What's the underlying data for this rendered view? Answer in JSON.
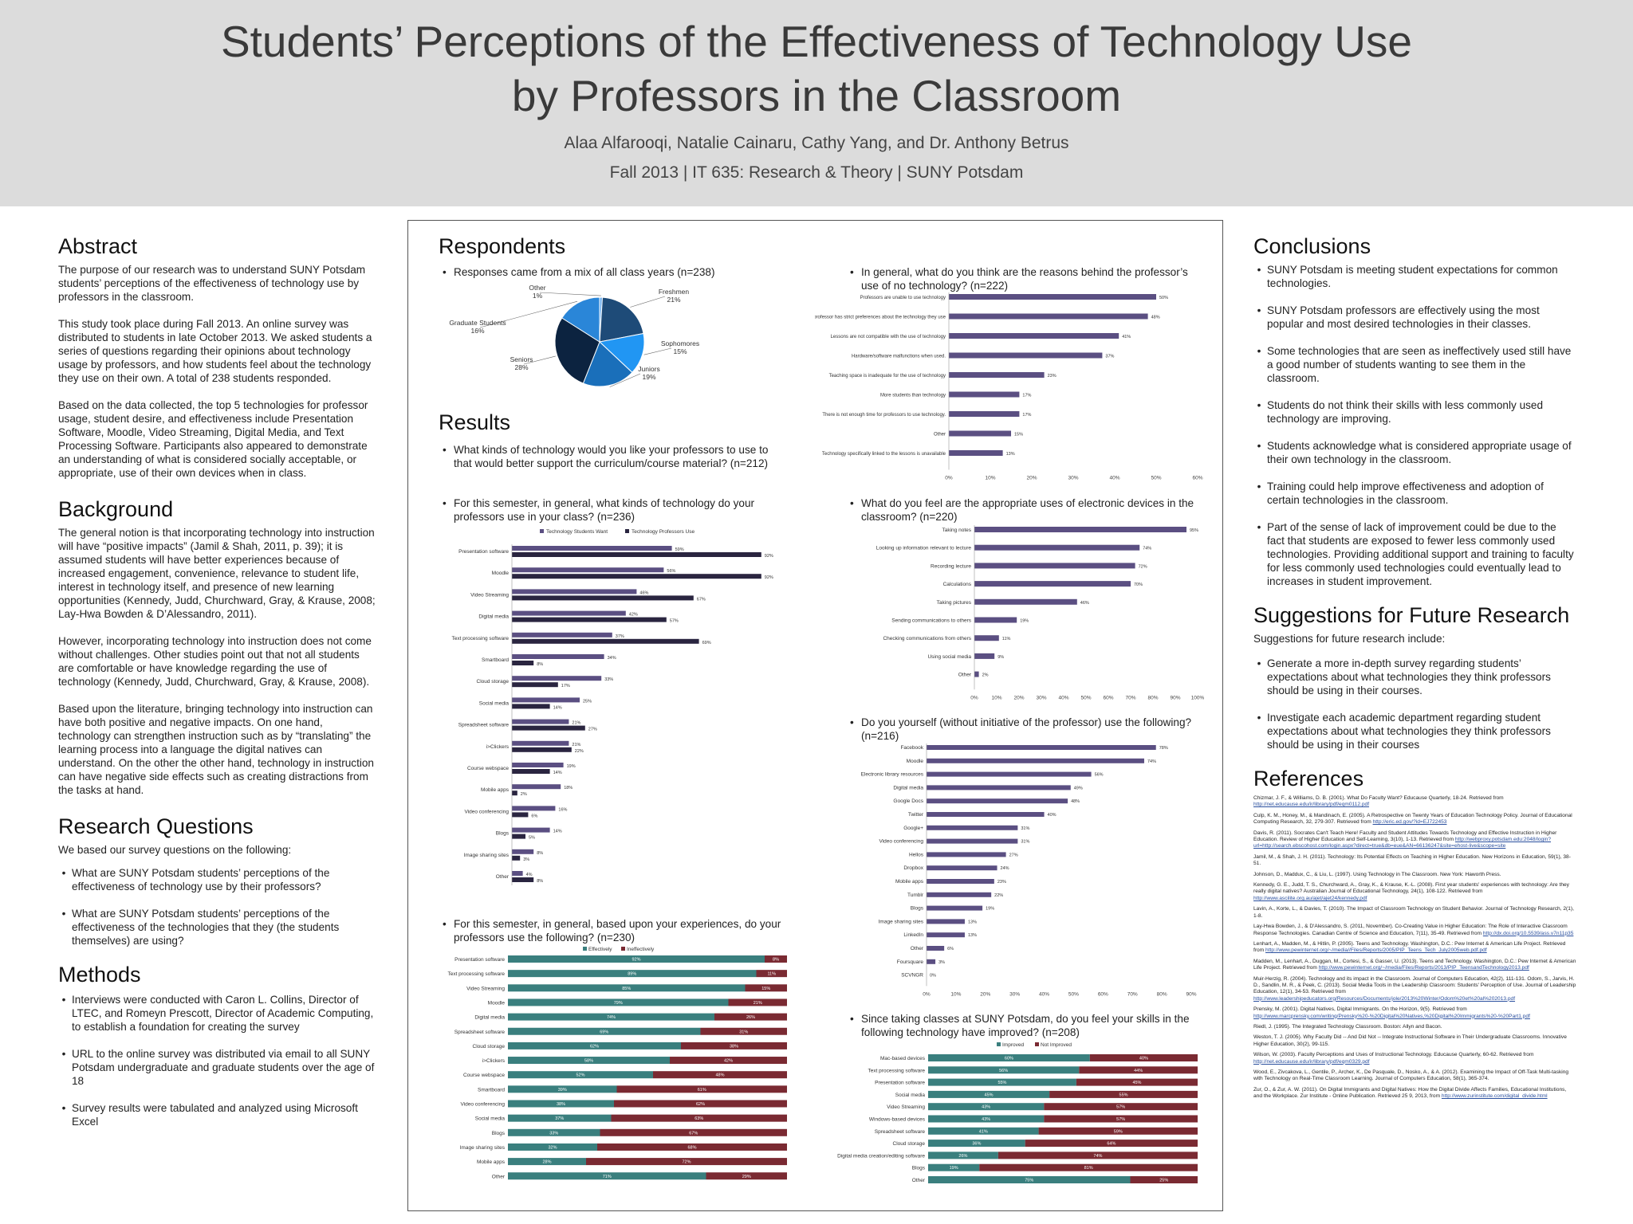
{
  "header": {
    "title_line1": "Students’ Perceptions of the Effectiveness of Technology Use",
    "title_line2": "by Professors in the Classroom",
    "authors": "Alaa Alfarooqi, Natalie Cainaru, Cathy Yang, and Dr. Anthony Betrus",
    "course": "Fall 2013 | IT 635: Research & Theory | SUNY Potsdam"
  },
  "abstract": {
    "heading": "Abstract",
    "p1": "The purpose of our research was to understand SUNY Potsdam students’ perceptions of the effectiveness of technology use by professors in the classroom.",
    "p2": "This study took place during Fall 2013. An online survey was distributed to students in late October 2013. We asked students a series of questions regarding their opinions about technology usage by professors, and how students feel about the technology they use on their own. A total of 238 students responded.",
    "p3": "Based on the data collected, the top 5 technologies for professor usage, student desire, and effectiveness include Presentation Software, Moodle, Video Streaming, Digital Media, and Text Processing Software. Participants also appeared to demonstrate an understanding of what is considered socially acceptable, or appropriate, use of their own devices when in class."
  },
  "background": {
    "heading": "Background",
    "p1": "The general notion is that incorporating technology into instruction will have “positive impacts” (Jamil & Shah, 2011, p. 39); it is assumed students will have better experiences because of increased engagement, convenience, relevance to student life, interest in technology itself, and presence of new learning opportunities (Kennedy, Judd, Churchward, Gray, & Krause, 2008; Lay-Hwa Bowden & D’Alessandro, 2011).",
    "p2": "However, incorporating technology into instruction does not come without challenges. Other studies point out that not all students are comfortable or have knowledge regarding the use of technology (Kennedy, Judd, Churchward, Gray, & Krause, 2008).",
    "p3": "Based upon the literature, bringing technology into instruction can have both positive and negative impacts. On one hand, technology can strengthen instruction such as by “translating” the learning process into a language the digital natives can understand. On the other the other hand, technology in instruction can have negative side effects such as creating distractions from the tasks at hand."
  },
  "research_questions": {
    "heading": "Research Questions",
    "intro": "We based our survey questions on the following:",
    "items": [
      "What are SUNY Potsdam students’ perceptions of the effectiveness of technology use by their professors?",
      "What are SUNY Potsdam students’ perceptions of the effectiveness of the technologies that they (the students themselves) are using?"
    ]
  },
  "methods": {
    "heading": "Methods",
    "items": [
      "Interviews were conducted with Caron L. Collins, Director of LTEC, and Romeyn Prescott, Director of Academic Computing, to establish a foundation for creating the survey",
      "URL to the online survey was distributed via email to all SUNY Potsdam undergraduate and graduate students over the age of 18",
      "Survey results were tabulated and analyzed using Microsoft Excel"
    ]
  },
  "respondents": {
    "heading": "Respondents",
    "bullet": "Responses came from a mix of all class years (n=238)"
  },
  "results": {
    "heading": "Results",
    "q1": "What kinds of technology would you like your professors to use to that would better support the curriculum/course material? (n=212)",
    "q2": "For this semester, in general, what kinds of technology do your professors use in your class? (n=236)",
    "q3": "For this semester, in general, based upon your experiences, do your professors use the following? (n=230)",
    "q4": "In general, what do you think are the reasons behind the professor’s use of no technology? (n=222)",
    "q5": "What do you feel are the appropriate uses of electronic devices in the classroom? (n=220)",
    "q6": "Do you yourself (without initiative of the professor) use the following? (n=216)",
    "q7": "Since taking classes at SUNY Potsdam, do you feel your skills in the following technology have improved? (n=208)"
  },
  "conclusions": {
    "heading": "Conclusions",
    "items": [
      "SUNY Potsdam is meeting student expectations for common technologies.",
      "SUNY Potsdam professors are effectively using the most popular and most desired technologies in their classes.",
      "Some technologies that are seen as ineffectively used still have a good number of students wanting to see them in the classroom.",
      "Students do not think their skills with less commonly used technology are improving.",
      "Students acknowledge what is considered appropriate usage of their own technology in the classroom.",
      "Training could help improve effectiveness and adoption of certain technologies in the classroom.",
      "Part of the sense of lack of improvement could be due to the fact that students are exposed to fewer less commonly used technologies. Providing additional support and training to faculty for less commonly used technologies could eventually lead to increases in student improvement."
    ]
  },
  "future": {
    "heading": "Suggestions for Future Research",
    "intro": "Suggestions for future research include:",
    "items": [
      "Generate a more in-depth survey regarding students’ expectations about what technologies they think professors should be using in their courses.",
      "Investigate each academic department regarding student expectations about what technologies they think professors should be using in their courses"
    ]
  },
  "references": {
    "heading": "References",
    "items": [
      [
        "Chizmar, J. F., & Williams, D. B. (2001). What Do Faculty Want? Educause Quarterly, 18-24. Retrieved from ",
        "http://net.educause.edu/ir/library/pdf/eqm0112.pdf"
      ],
      [
        "Culp, K. M., Honey, M., & Mandinach, E. (2005). A Retrospective on Twenty Years of Education Technology Policy. Journal of Educational Computing Research, 32, 279-307. Retrieved from ",
        "http://eric.ed.gov/?id=EJ722453"
      ],
      [
        "Davis, R. (2011). Socrates Can't Teach Here! Faculty and Student Attitudes Towards Technology and Effective Instruction in Higher Education. Review of Higher Education and Self-Learning, 3(10), 1-13. Retrieved from ",
        "http://webproxy.potsdam.edu:2048/login?url=http://search.ebscohost.com/login.aspx?direct=true&db=eue&AN=66136247&site=ehost-live&scope=site"
      ],
      [
        "Jamil, M., & Shah, J. H. (2011). Technology: Its Potential Effects on Teaching in Higher Education. New Horizons in Education, 59(1), 38-51.",
        ""
      ],
      [
        "Johnson, D., Maddux, C., & Liu, L. (1997). Using Technology in The Classroom. New York: Haworth Press.",
        ""
      ],
      [
        "Kennedy, G. E., Judd, T. S., Churchward, A., Gray, K., & Krause, K.-L. (2008). First year students' experiences with technology: Are they really digital natives? Australian Journal of Educational Technology, 24(1), 108-122. Retrieved from ",
        "http://www.ascilite.org.au/ajet/ajet24/kennedy.pdf"
      ],
      [
        "Lavin, A., Korte, L., & Davies, T. (2010). The Impact of Classroom Technology on Student Behavior. Journal of Technology Research, 2(1), 1-8.",
        ""
      ],
      [
        "Lay-Hwa Bowden, J., & D'Alessandro, S. (2011, November). Co-Creating Value in Higher Education: The Role of Interactive Classroom Response Technologies. Canadian Centre of Science and Education, 7(11), 35-49. Retrieved from ",
        "http://dx.doi.org/10.5539/ass.v7n11p35"
      ],
      [
        "Lenhart, A., Madden, M., & Hitlin, P. (2005). Teens and Technology. Washington, D.C.: Pew Internet & American Life Project. Retrieved from ",
        "http://www.pewinternet.org/~/media//Files/Reports/2005/PIP_Teens_Tech_July2005web.pdf.pdf"
      ],
      [
        "Madden, M., Lenhart, A., Duggan, M., Cortesi, S., & Gasser, U. (2013). Teens and Technology. Washington, D.C.: Pew Internet & American Life Project. Retrieved from ",
        "http://www.pewinternet.org/~/media/Files/Reports/2013/PIP_TeensandTechnology2013.pdf"
      ],
      [
        "Muir-Herzig, R. (2004). Technology and its impact in the Classroom. Journal of Computers Education, 42(2), 111-131. Odom, S., Jarvis, H. D., Sandlin, M. R., & Peek, C. (2013). Social Media Tools in the Leadership Classroom: Students' Perception of Use. Journal of Leadership Education, 12(1), 34-53. Retrieved from ",
        "http://www.leadershipeducators.org/Resources/Documents/jole/2013%20Winter/Odom%20et%20al%202013.pdf"
      ],
      [
        "Prensky, M. (2001). Digital Natives, Digital Immigrants. On the Horizon, 9(5). Retrieved from ",
        "http://www.marcprensky.com/writing/Prensky%20-%20Digital%20Natives,%20Digital%20Immigrants%20-%20Part1.pdf"
      ],
      [
        "Riedl, J. (1995). The Integrated Technology Classroom. Boston: Allyn and Bacon.",
        ""
      ],
      [
        "Weston, T. J. (2005). Why Faculty Did -- And Did Not -- Integrate Instructional Software in Their Undergraduate Classrooms. Innovative Higher Education, 30(2), 99-115.",
        ""
      ],
      [
        "Wilson, W. (2003). Faculty Perceptions and Uses of Instructional Technology. Educause Quarterly, 60-62. Retrieved from ",
        "http://net.educause.edu/ir/library/pdf/eqm0329.pdf"
      ],
      [
        "Wood, E., Zivcakova, L., Gentile, P., Archer, K., De Pasquale, D., Nosko, A., & A. (2012). Examining the Impact of Off-Task Multi-tasking with Technology on Real-Time Classroom Learning. Journal of Computers Education, 58(1), 365-374.",
        ""
      ],
      [
        "Zur, O., & Zur, A. W. (2011). On Digital Immigrants and Digital Natives: How the Digital Divide Affects Families, Educational Institutions, and the Workplace. Zur Institute - Online Publication. Retrieved 25 9, 2013, from ",
        "http://www.zurinstitute.com/digital_divide.html"
      ]
    ]
  },
  "colors": {
    "pie": [
      "#6aaef0",
      "#1e4b78",
      "#2196f3",
      "#1a6fba",
      "#0c2340",
      "#2a86d8"
    ],
    "want": "#5b4f82",
    "use": "#2a2540",
    "bar": "#5b4f82",
    "effective": "#3a7f7e",
    "ineffective": "#7a2a32"
  },
  "chart_data": [
    {
      "type": "pie",
      "categories": [
        "Other",
        "Freshmen",
        "Sophomores",
        "Juniors",
        "Seniors",
        "Graduate Students"
      ],
      "values": [
        1,
        21,
        15,
        19,
        28,
        16
      ],
      "labels": [
        "Other\n1%",
        "Freshmen\n21%",
        "Sophomores\n15%",
        "Juniors\n19%",
        "Seniors\n28%",
        "Graduate Students\n16%"
      ]
    },
    {
      "type": "bar",
      "orientation": "horizontal",
      "categories": [
        "Presentation software",
        "Moodle",
        "Video Streaming",
        "Digital media",
        "Text processing software",
        "Smartboard",
        "Cloud storage",
        "Social media",
        "Spreadsheet software",
        "i>Clickers",
        "Course webspace",
        "Mobile apps",
        "Video conferencing",
        "Blogs",
        "Image sharing sites",
        "Other"
      ],
      "series": [
        {
          "name": "Technology Students Want",
          "values": [
            59,
            56,
            46,
            42,
            37,
            34,
            33,
            25,
            21,
            21,
            19,
            18,
            16,
            14,
            8,
            4
          ]
        },
        {
          "name": "Technology Professors Use",
          "values": [
            92,
            92,
            67,
            57,
            69,
            8,
            17,
            14,
            27,
            22,
            14,
            2,
            6,
            5,
            3,
            8
          ]
        }
      ],
      "xlim": [
        0,
        100
      ],
      "xticks": [
        "0%",
        "10%",
        "20%",
        "30%",
        "40%",
        "50%",
        "60%",
        "70%",
        "80%",
        "90%",
        "100%"
      ],
      "legend": "top"
    },
    {
      "type": "bar",
      "orientation": "horizontal",
      "stacked": true,
      "categories": [
        "Presentation software",
        "Text processing software",
        "Video Streaming",
        "Moodle",
        "Digital media",
        "Spreadsheet software",
        "Cloud storage",
        "i>Clickers",
        "Course webspace",
        "Smartboard",
        "Video conferencing",
        "Social media",
        "Blogs",
        "Image sharing sites",
        "Mobile apps",
        "Other"
      ],
      "series": [
        {
          "name": "Effectively",
          "values": [
            92,
            89,
            85,
            79,
            74,
            69,
            62,
            58,
            52,
            39,
            38,
            37,
            33,
            32,
            28,
            71
          ]
        },
        {
          "name": "Ineffectively",
          "values": [
            8,
            11,
            15,
            21,
            26,
            31,
            38,
            42,
            48,
            61,
            62,
            63,
            67,
            68,
            72,
            29
          ]
        }
      ],
      "legend": "top"
    },
    {
      "type": "bar",
      "orientation": "horizontal",
      "categories": [
        "Professors are unable to use technology",
        "The professor has strict preferences about the technology they use",
        "Lessons are not compatible with the use of technology",
        "Hardware/software malfunctions when used.",
        "Teaching space is inadequate for the use of technology",
        "More students than technology",
        "There is not enough time for professors to use technology.",
        "Other",
        "Technology specifically linked to the lessons is unavailable"
      ],
      "values": [
        50,
        48,
        41,
        37,
        23,
        17,
        17,
        15,
        13
      ],
      "xlim": [
        0,
        60
      ],
      "xticks": [
        "0%",
        "10%",
        "20%",
        "30%",
        "40%",
        "50%",
        "60%"
      ]
    },
    {
      "type": "bar",
      "orientation": "horizontal",
      "categories": [
        "Taking notes",
        "Looking up information relevant to lecture",
        "Recording lecture",
        "Calculations",
        "Taking pictures",
        "Sending communications to others",
        "Checking communications from others",
        "Using social media",
        "Other"
      ],
      "values": [
        95,
        74,
        72,
        70,
        46,
        19,
        11,
        9,
        2
      ],
      "xlim": [
        0,
        100
      ],
      "xticks": [
        "0%",
        "10%",
        "20%",
        "30%",
        "40%",
        "50%",
        "60%",
        "70%",
        "80%",
        "90%",
        "100%"
      ]
    },
    {
      "type": "bar",
      "orientation": "horizontal",
      "categories": [
        "Facebook",
        "Moodle",
        "Electronic library resources",
        "Digital media",
        "Google Docs",
        "Twitter",
        "Google+",
        "Video conferencing",
        "Hellos",
        "Dropbox",
        "Mobile apps",
        "Tumblr",
        "Blogs",
        "Image sharing sites",
        "LinkedIn",
        "Other",
        "Foursquare",
        "SCVNGR"
      ],
      "values": [
        78,
        74,
        56,
        49,
        48,
        40,
        31,
        31,
        27,
        24,
        23,
        22,
        19,
        13,
        13,
        6,
        3,
        0
      ],
      "xlim": [
        0,
        90
      ],
      "xticks": [
        "0%",
        "10%",
        "20%",
        "30%",
        "40%",
        "50%",
        "60%",
        "70%",
        "80%",
        "90%"
      ]
    },
    {
      "type": "bar",
      "orientation": "horizontal",
      "stacked": true,
      "categories": [
        "Mac-based devices",
        "Text processing software",
        "Presentation software",
        "Social media",
        "Video Streaming",
        "Windows-based devices",
        "Spreadsheet software",
        "Cloud storage",
        "Digital media creation/editing software",
        "Blogs",
        "Other"
      ],
      "series": [
        {
          "name": "Improved",
          "values": [
            60,
            56,
            55,
            45,
            43,
            43,
            41,
            36,
            26,
            19,
            75
          ]
        },
        {
          "name": "Not Improved",
          "values": [
            40,
            44,
            45,
            55,
            57,
            57,
            59,
            64,
            74,
            81,
            25
          ]
        }
      ],
      "legend": "top"
    }
  ]
}
